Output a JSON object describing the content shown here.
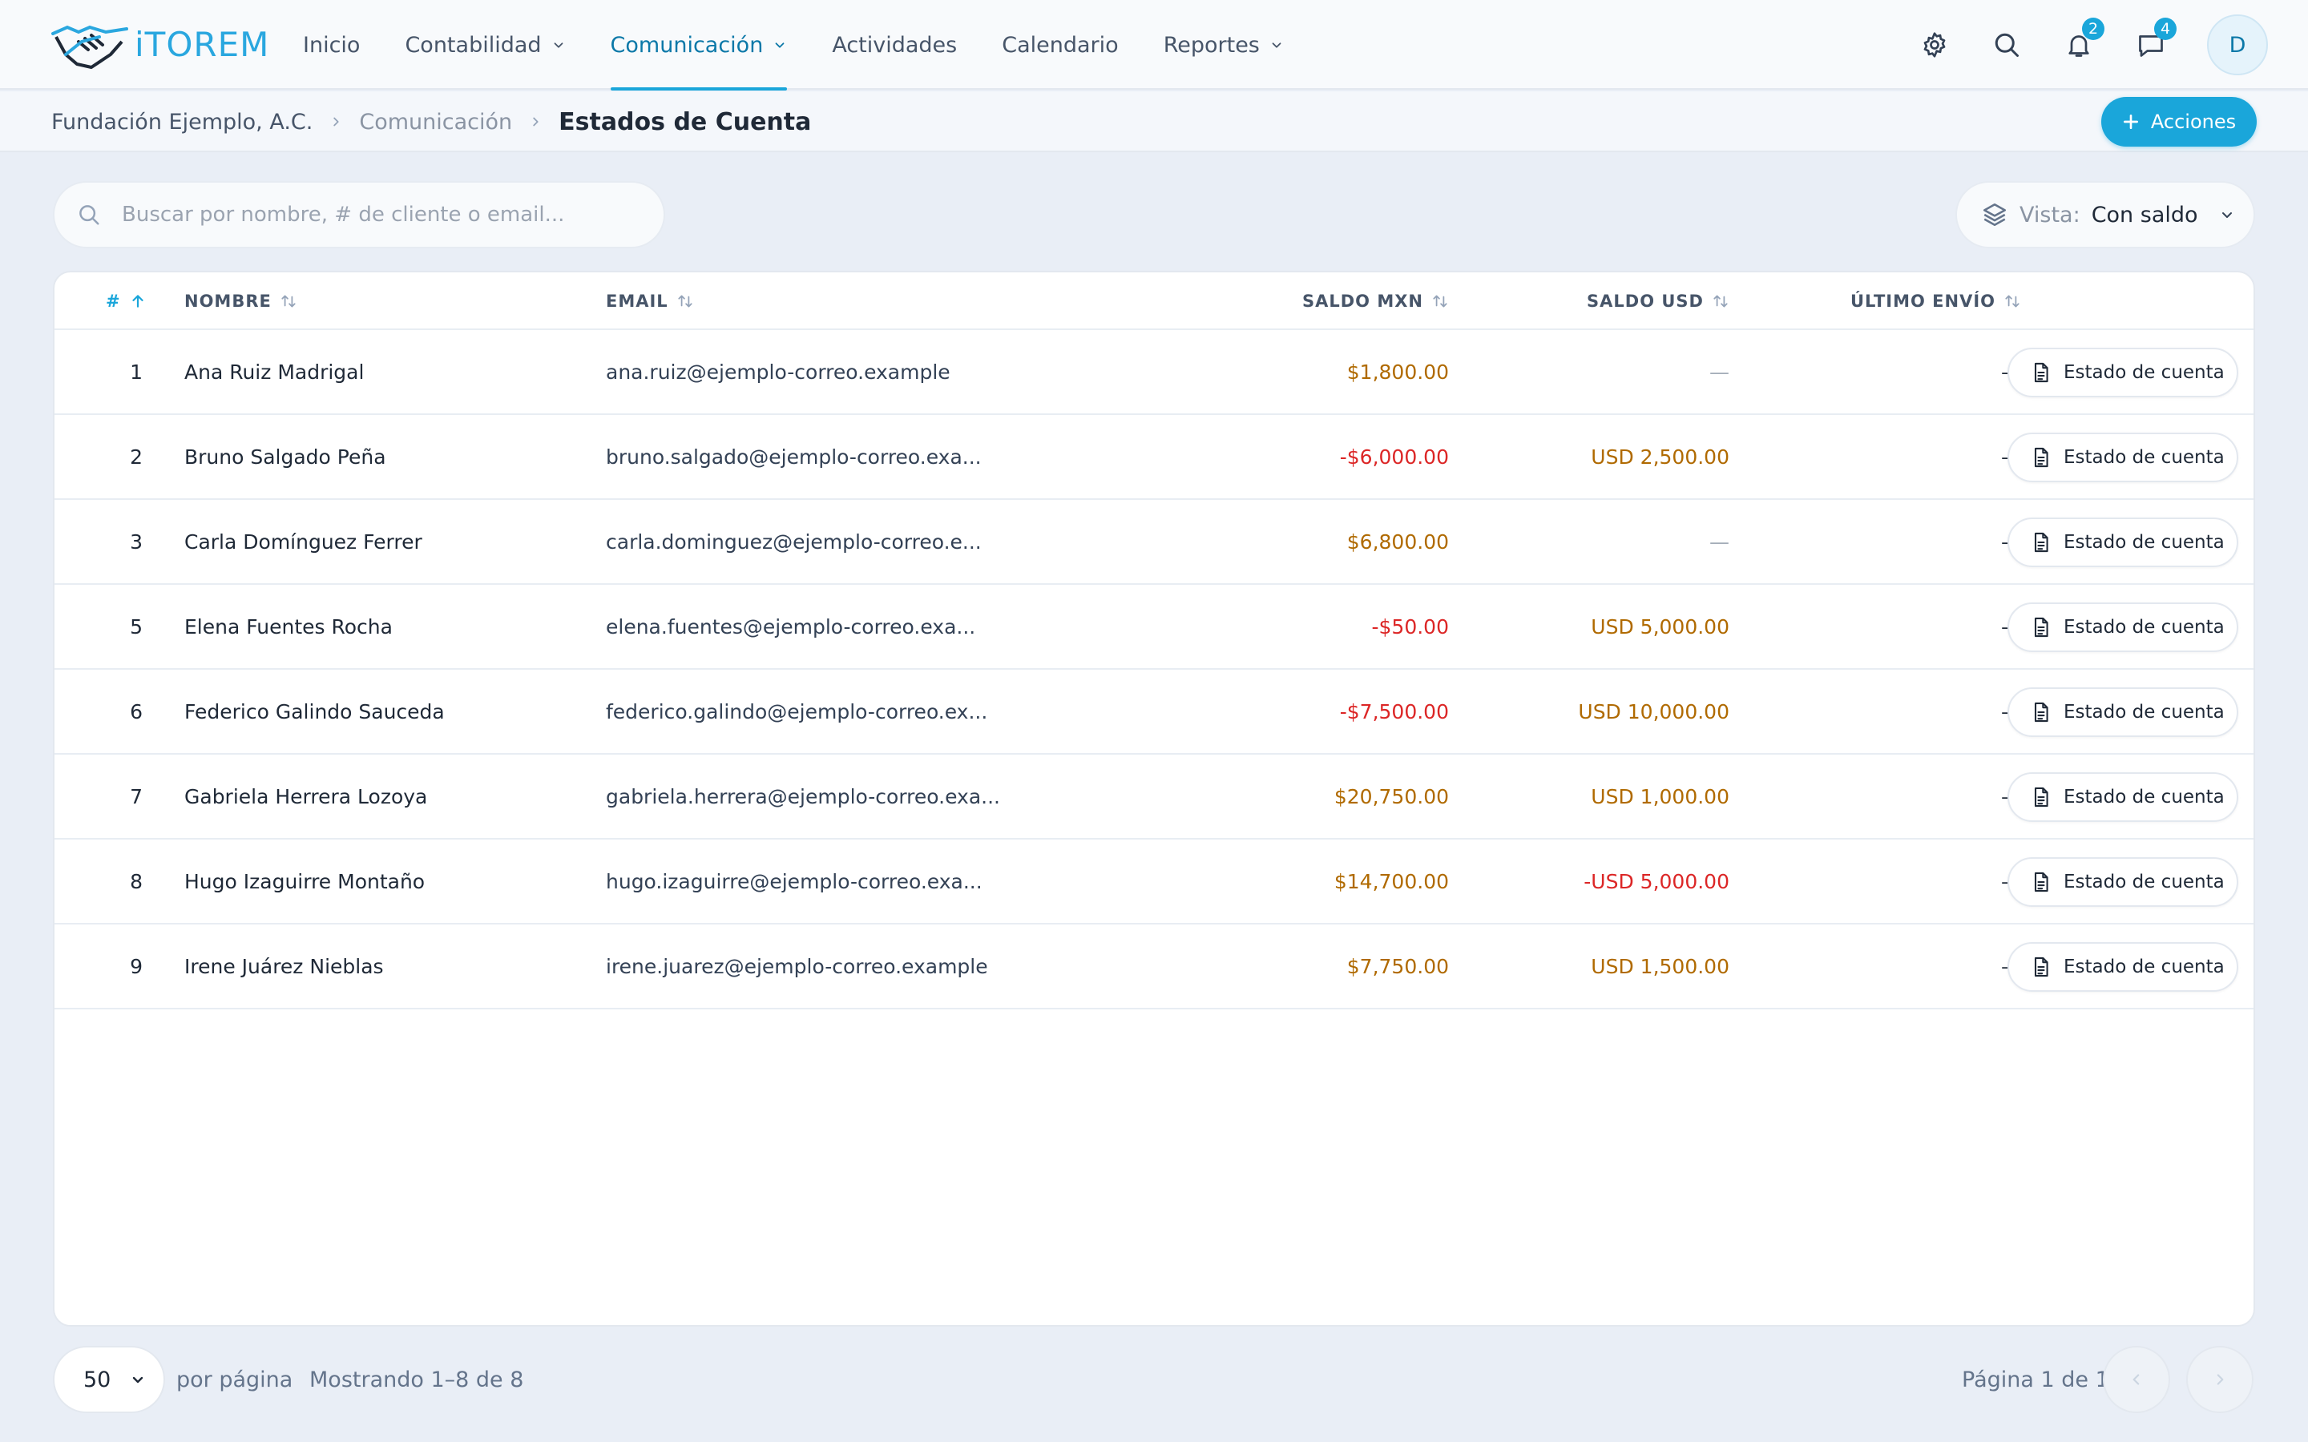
{
  "app": {
    "logo_text": "iTOREM",
    "nav": [
      {
        "label": "Inicio",
        "dropdown": false
      },
      {
        "label": "Contabilidad",
        "dropdown": true
      },
      {
        "label": "Comunicación",
        "dropdown": true,
        "active": true
      },
      {
        "label": "Actividades",
        "dropdown": false
      },
      {
        "label": "Calendario",
        "dropdown": false
      },
      {
        "label": "Reportes",
        "dropdown": true
      }
    ],
    "icons": {
      "settings": "gear-icon",
      "search": "search-icon",
      "notifications": "bell-icon",
      "messages": "chat-icon"
    },
    "notifications_count": "2",
    "messages_count": "4",
    "avatar_initial": "D",
    "accent_color": "#1aa6da"
  },
  "breadcrumb": {
    "org": "Fundación Ejemplo, A.C.",
    "section": "Comunicación",
    "current": "Estados de Cuenta"
  },
  "actions_label": "Acciones",
  "search": {
    "placeholder": "Buscar por nombre, # de cliente o email..."
  },
  "view": {
    "label": "Vista:",
    "value": "Con saldo"
  },
  "table": {
    "columns": {
      "id": "#",
      "name": "NOMBRE",
      "email": "EMAIL",
      "saldo_mxn": "SALDO MXN",
      "saldo_usd": "SALDO USD",
      "ultimo_envio": "ÚLTIMO ENVÍO"
    },
    "action_label": "Estado de cuenta",
    "rows": [
      {
        "id": "1",
        "name": "Ana Ruiz Madrigal",
        "email": "ana.ruiz@ejemplo-correo.example",
        "mxn": "$1,800.00",
        "mxn_neg": false,
        "usd": "—",
        "usd_neg": false,
        "usd_empty": true,
        "last": "—"
      },
      {
        "id": "2",
        "name": "Bruno Salgado Peña",
        "email": "bruno.salgado@ejemplo-correo.exa...",
        "mxn": "-$6,000.00",
        "mxn_neg": true,
        "usd": "USD 2,500.00",
        "usd_neg": false,
        "usd_empty": false,
        "last": "—"
      },
      {
        "id": "3",
        "name": "Carla Domínguez Ferrer",
        "email": "carla.dominguez@ejemplo-correo.e...",
        "mxn": "$6,800.00",
        "mxn_neg": false,
        "usd": "—",
        "usd_neg": false,
        "usd_empty": true,
        "last": "—"
      },
      {
        "id": "5",
        "name": "Elena Fuentes Rocha",
        "email": "elena.fuentes@ejemplo-correo.exa...",
        "mxn": "-$50.00",
        "mxn_neg": true,
        "usd": "USD 5,000.00",
        "usd_neg": false,
        "usd_empty": false,
        "last": "—"
      },
      {
        "id": "6",
        "name": "Federico Galindo Sauceda",
        "email": "federico.galindo@ejemplo-correo.ex...",
        "mxn": "-$7,500.00",
        "mxn_neg": true,
        "usd": "USD 10,000.00",
        "usd_neg": false,
        "usd_empty": false,
        "last": "—"
      },
      {
        "id": "7",
        "name": "Gabriela Herrera Lozoya",
        "email": "gabriela.herrera@ejemplo-correo.exa...",
        "mxn": "$20,750.00",
        "mxn_neg": false,
        "usd": "USD 1,000.00",
        "usd_neg": false,
        "usd_empty": false,
        "last": "—"
      },
      {
        "id": "8",
        "name": "Hugo Izaguirre Montaño",
        "email": "hugo.izaguirre@ejemplo-correo.exa...",
        "mxn": "$14,700.00",
        "mxn_neg": false,
        "usd": "-USD 5,000.00",
        "usd_neg": true,
        "usd_empty": false,
        "last": "—"
      },
      {
        "id": "9",
        "name": "Irene Juárez Nieblas",
        "email": "irene.juarez@ejemplo-correo.example",
        "mxn": "$7,750.00",
        "mxn_neg": false,
        "usd": "USD 1,500.00",
        "usd_neg": false,
        "usd_empty": false,
        "last": "—"
      }
    ]
  },
  "footer": {
    "per_page_value": "50",
    "per_page_label": "por página",
    "showing": "Mostrando 1–8 de 8",
    "page_info": "Página 1 de 1"
  },
  "colors": {
    "positive_amount": "#b06a00",
    "negative_amount": "#dc2626"
  }
}
